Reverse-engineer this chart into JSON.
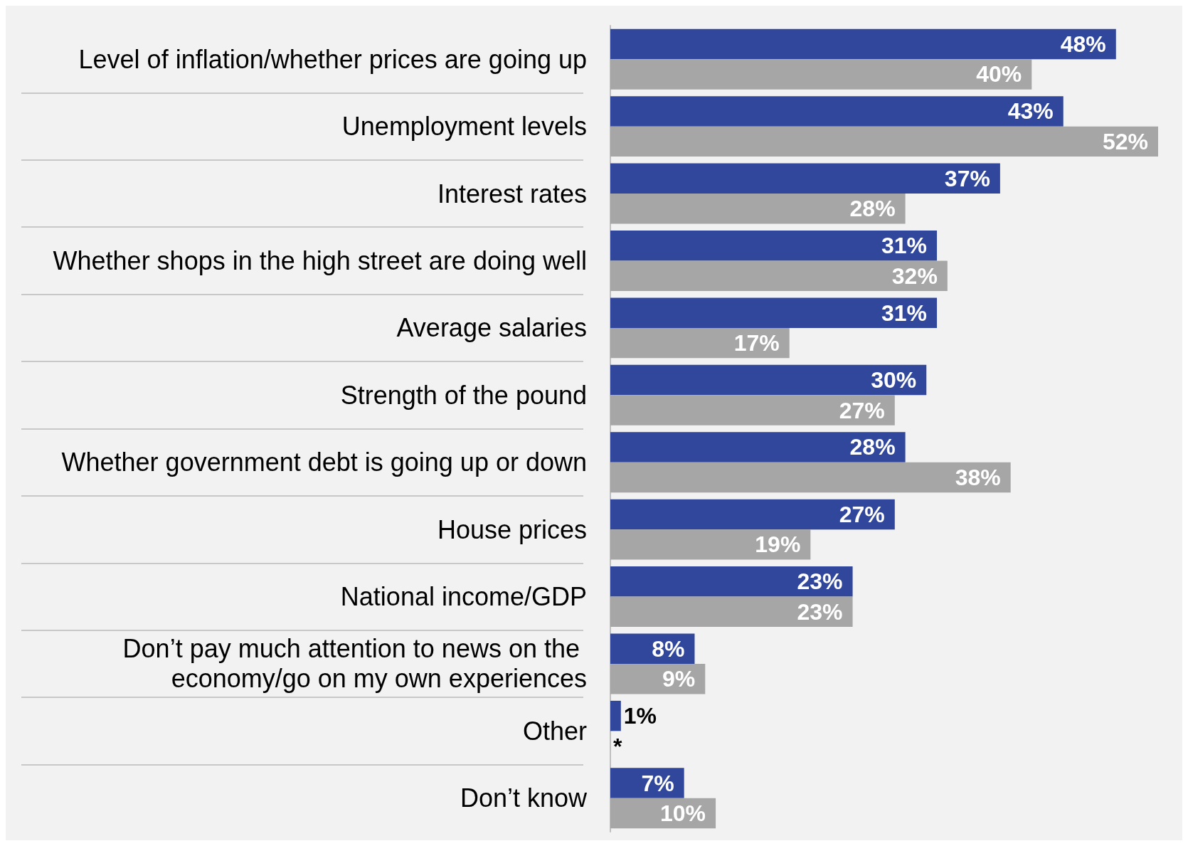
{
  "chart_data": {
    "type": "bar",
    "orientation": "horizontal",
    "data_labels": true,
    "grid": "y",
    "categories": [
      "Level of inflation/whether prices are going up",
      "Unemployment levels",
      "Interest rates",
      "Whether shops in the high street are doing well",
      "Average salaries",
      "Strength of the pound",
      "Whether government debt is going up or down",
      "House prices",
      "National income/GDP",
      "Don’t pay much attention to news on the economy/go on my own experiences",
      "Other",
      "Don’t know"
    ],
    "series": [
      {
        "color": "#31479b",
        "values": [
          48,
          43,
          37,
          31,
          31,
          30,
          28,
          27,
          23,
          8,
          1,
          7
        ],
        "value_labels": [
          "48%",
          "43%",
          "37%",
          "31%",
          "31%",
          "30%",
          "28%",
          "27%",
          "23%",
          "8%",
          "1%",
          "7%"
        ]
      },
      {
        "color": "#a6a6a6",
        "values": [
          40,
          52,
          28,
          32,
          17,
          27,
          38,
          19,
          23,
          9,
          0,
          10
        ],
        "value_labels": [
          "40%",
          "52%",
          "28%",
          "32%",
          "17%",
          "27%",
          "38%",
          "19%",
          "23%",
          "9%",
          "*",
          "10%"
        ]
      }
    ]
  }
}
